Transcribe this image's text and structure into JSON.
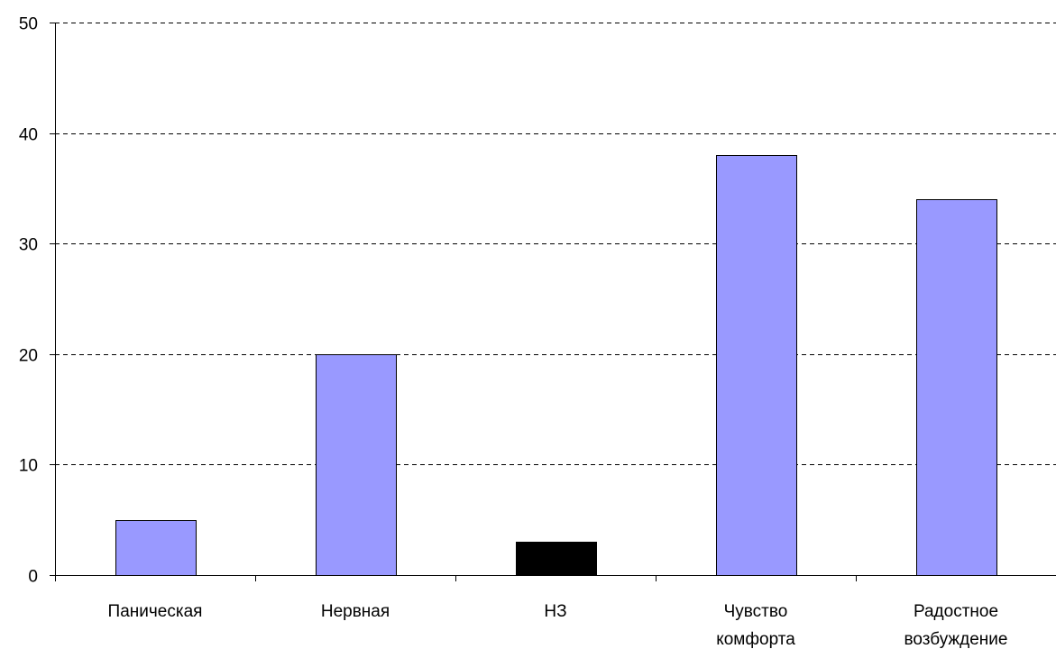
{
  "chart_data": {
    "type": "bar",
    "title": "",
    "xlabel": "",
    "ylabel": "",
    "ylim": [
      0,
      50
    ],
    "yticks": [
      0,
      10,
      20,
      30,
      40,
      50
    ],
    "grid": "horizontal dashed",
    "legend": "none",
    "categories": [
      [
        "Паническая"
      ],
      [
        "Нервная"
      ],
      [
        "НЗ"
      ],
      [
        "Чувство",
        "комфорта"
      ],
      [
        "Радостное",
        "возбуждение"
      ]
    ],
    "values": [
      5,
      20,
      3,
      38,
      34
    ],
    "colors": [
      "#9999ff",
      "#9999ff",
      "#000000",
      "#9999ff",
      "#9999ff"
    ]
  }
}
